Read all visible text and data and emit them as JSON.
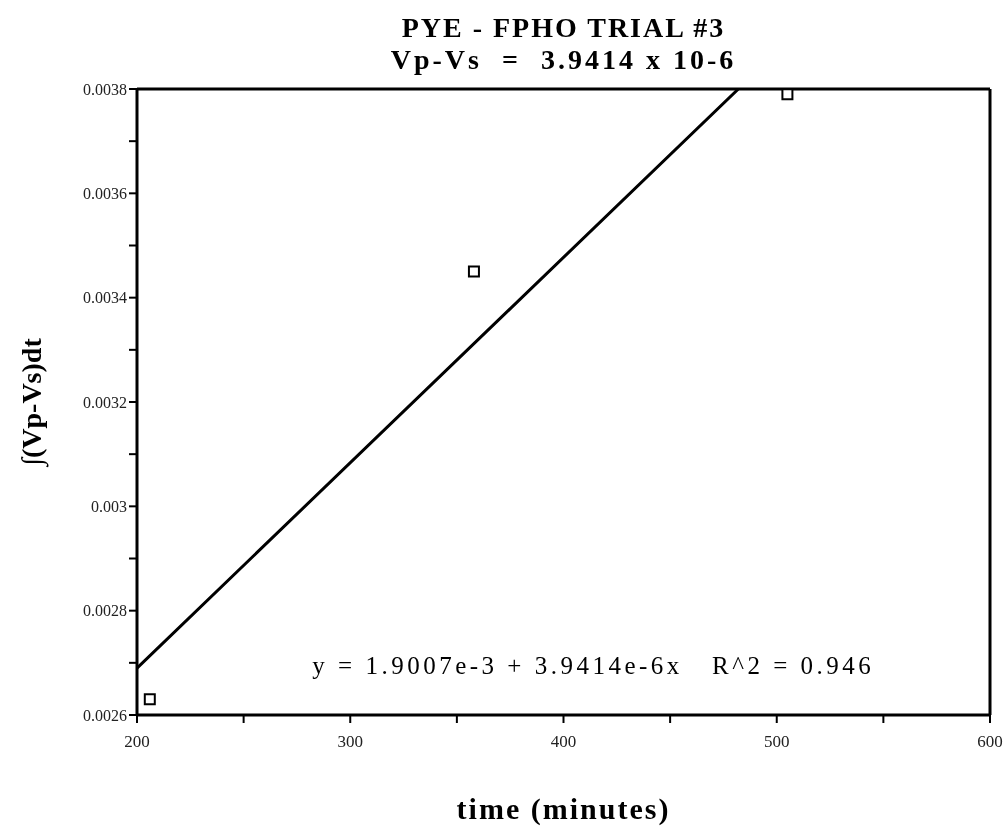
{
  "chart_data": {
    "type": "scatter",
    "title": "PYE - FPHO TRIAL #3",
    "subtitle": "Vp-Vs  =  3.9414 x 10-6",
    "xlabel": "time (minutes)",
    "ylabel": "∫(Vp-Vs)dt",
    "x": [
      206,
      358,
      505
    ],
    "series": [
      {
        "color": "#000000",
        "values": [
          0.00263,
          0.00345,
          0.00379
        ],
        "marker": "square"
      },
      {
        "type": "line",
        "color": "#000000",
        "x": [
          200,
          482
        ],
        "values": [
          0.00269,
          0.0038
        ],
        "marker": "none",
        "line_style": "solid"
      }
    ],
    "xlim": [
      200,
      600
    ],
    "xticks": [
      200,
      {
        "value": 250,
        "label": null
      },
      300,
      {
        "value": 350,
        "label": null
      },
      400,
      {
        "value": 450,
        "label": null
      },
      500,
      {
        "value": 550,
        "label": null
      },
      600
    ],
    "ylim": [
      0.0026,
      0.0038
    ],
    "yticks": [
      0.0026,
      {
        "value": 0.0027,
        "label": null
      },
      0.0028,
      {
        "value": 0.0029,
        "label": null
      },
      0.003,
      {
        "value": 0.0031,
        "label": null
      },
      0.0032,
      {
        "value": 0.0033,
        "label": null
      },
      0.0034,
      {
        "value": 0.0035,
        "label": null
      },
      0.0036,
      {
        "value": 0.0037,
        "label": null
      },
      0.0038
    ],
    "annotations": [
      "y = 1.9007e-3 + 3.9414e-6x   R^2 = 0.946"
    ]
  }
}
